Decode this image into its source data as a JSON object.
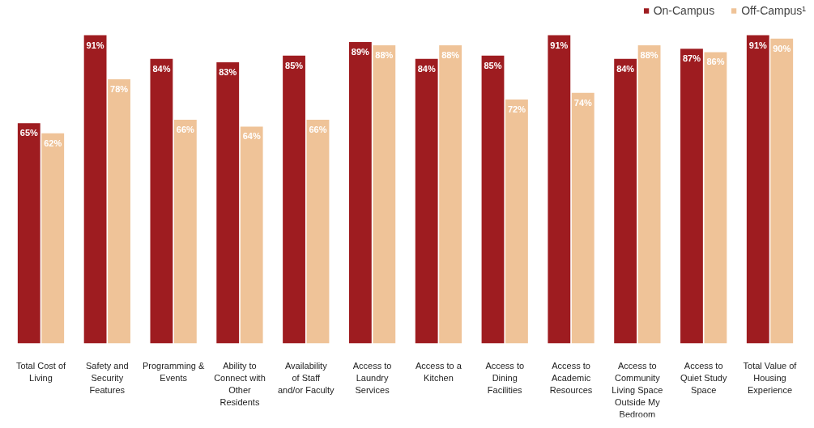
{
  "chart_data": {
    "type": "bar",
    "categories": [
      "Total Cost of Living",
      "Safety and Security Features",
      "Programming & Events",
      "Ability to Connect with Other Residents",
      "Availability of Staff and/or Faculty",
      "Access to Laundry Services",
      "Access to a Kitchen",
      "Access to Dining Facilities",
      "Access to Academic Resources",
      "Access to Community Living Space Outside My Bedroom",
      "Access to Quiet Study Space",
      "Total Value of Housing Experience"
    ],
    "series": [
      {
        "name": "On-Campus",
        "color": "#9e1c20",
        "values": [
          65,
          91,
          84,
          83,
          85,
          89,
          84,
          85,
          91,
          84,
          87,
          91
        ],
        "value_labels": [
          "65%",
          "91%",
          "84%",
          "83%",
          "85%",
          "89%",
          "84%",
          "85%",
          "91%",
          "84%",
          "87%",
          "91%"
        ]
      },
      {
        "name": "Off-Campus¹",
        "color": "#efc398",
        "values": [
          62,
          78,
          66,
          64,
          66,
          88,
          88,
          72,
          74,
          88,
          86,
          90
        ],
        "value_labels": [
          "62%",
          "78%",
          "66%",
          "64%",
          "66%",
          "88%",
          "88%",
          "72%",
          "74%",
          "88%",
          "86%",
          "90%"
        ]
      }
    ],
    "legend": "top right",
    "grid": false
  }
}
